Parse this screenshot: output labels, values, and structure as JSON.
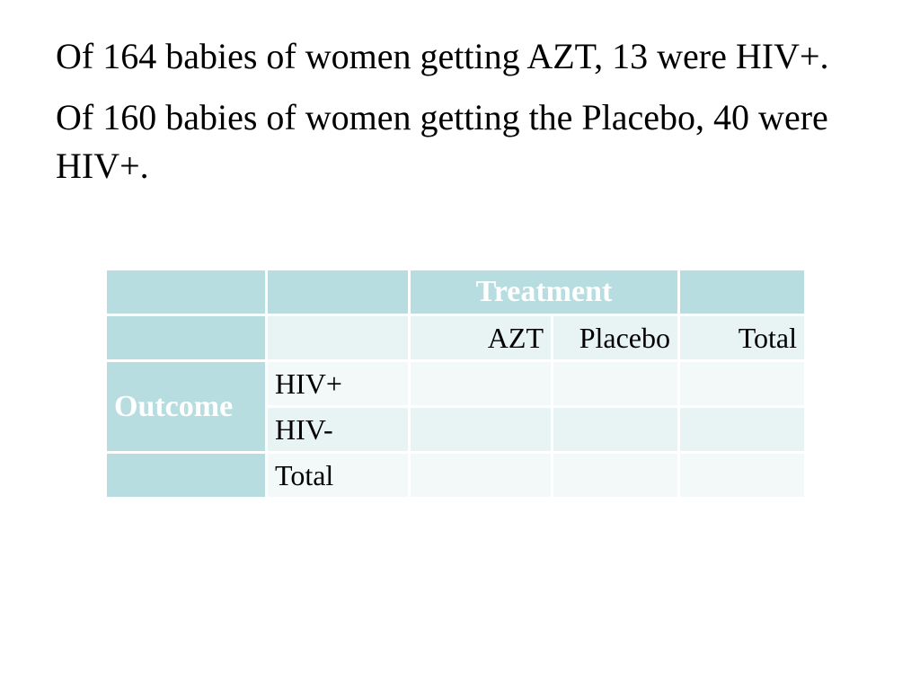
{
  "paragraphs": [
    "Of 164 babies of women getting AZT, 13 were HIV+.",
    "Of 160 babies of women getting the Placebo, 40 were HIV+."
  ],
  "table": {
    "header_label": "Treatment",
    "columns": [
      "AZT",
      "Placebo",
      "Total"
    ],
    "row_group_label": "Outcome",
    "rows": [
      "HIV+",
      "HIV-",
      "Total"
    ],
    "cells": [
      [
        "",
        "",
        ""
      ],
      [
        "",
        "",
        ""
      ],
      [
        "",
        "",
        ""
      ]
    ]
  },
  "colors": {
    "header_fill": "#b8dde1",
    "band_a": "#e8f3f4",
    "band_b": "#f3f9f9"
  }
}
